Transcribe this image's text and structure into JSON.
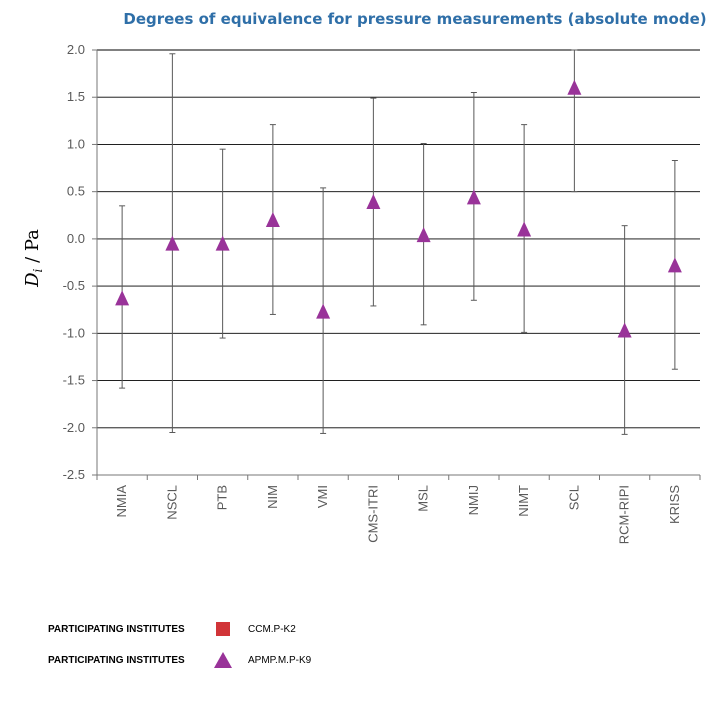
{
  "chart_data": {
    "type": "scatter",
    "title": "Degrees of equivalence for pressure measurements (absolute mode)",
    "ylabel_main": "D",
    "ylabel_sub": "i",
    "ylabel_unit": " / Pa",
    "ylim": [
      -2.5,
      2.0
    ],
    "yticks": [
      2.0,
      1.5,
      1.0,
      0.5,
      0.0,
      -0.5,
      -1.0,
      -1.5,
      -2.0,
      -2.5
    ],
    "ytick_labels": [
      "2.0",
      "1.5",
      "1.0",
      "0.5",
      "0.0",
      "-0.5",
      "-1.0",
      "-1.5",
      "-2.0",
      "-2.5"
    ],
    "grid": true,
    "categories": [
      "NMIA",
      "NSCL",
      "PTB",
      "NIM",
      "VMI",
      "CMS-ITRI",
      "MSL",
      "NMIJ",
      "NIMT",
      "SCL",
      "RCM-RIPI",
      "KRISS"
    ],
    "series": [
      {
        "name": "APMP.M.P-K9",
        "color": "#993399",
        "marker": "triangle",
        "values": [
          -0.63,
          -0.05,
          -0.05,
          0.2,
          -0.77,
          0.39,
          0.04,
          0.44,
          0.1,
          1.6,
          -0.97,
          -0.28
        ],
        "err_lower": [
          -1.58,
          -2.05,
          -1.05,
          -0.8,
          -2.06,
          -0.71,
          -0.91,
          -0.65,
          -0.99,
          0.5,
          -2.07,
          -1.38
        ],
        "err_upper": [
          0.35,
          1.96,
          0.95,
          1.21,
          0.54,
          1.49,
          1.01,
          1.55,
          1.21,
          2.0,
          0.14,
          0.83
        ]
      }
    ],
    "legend": {
      "placement": "bottom-left",
      "entries": [
        {
          "label": "PARTICIPATING INSTITUTES",
          "name": "CCM.P-K2",
          "marker": "square",
          "color": "#d13438"
        },
        {
          "label": "PARTICIPATING INSTITUTES",
          "name": "APMP.M.P-K9",
          "marker": "triangle",
          "color": "#993399"
        }
      ]
    }
  }
}
